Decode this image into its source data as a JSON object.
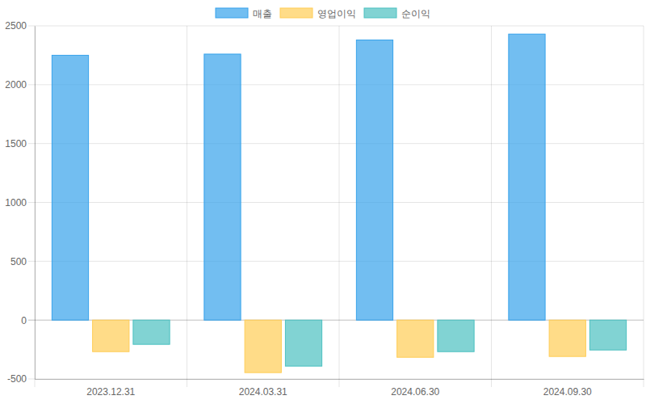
{
  "chart_data": {
    "type": "bar",
    "categories": [
      "2023.12.31",
      "2024.03.31",
      "2024.06.30",
      "2024.09.30"
    ],
    "series": [
      {
        "name": "매출",
        "color": "#36a2eb",
        "values": [
          2250,
          2260,
          2380,
          2430
        ]
      },
      {
        "name": "영업이익",
        "color": "#ffcd56",
        "values": [
          -268,
          -446,
          -316,
          -309
        ]
      },
      {
        "name": "순이익",
        "color": "#4bc0c0",
        "values": [
          -206,
          -391,
          -268,
          -254
        ]
      }
    ],
    "ylim": [
      -500,
      2500
    ],
    "yticks": [
      -500,
      0,
      500,
      1000,
      1500,
      2000,
      2500
    ],
    "grid": true,
    "legend": "top"
  }
}
